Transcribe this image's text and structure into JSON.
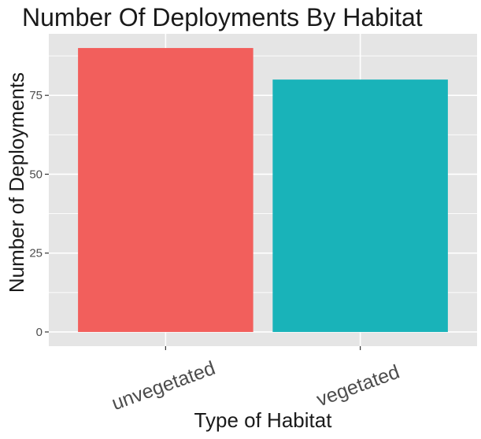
{
  "chart_data": {
    "type": "bar",
    "title": "Number Of Deployments By Habitat",
    "xlabel": "Type of Habitat",
    "ylabel": "Number of Deployments",
    "categories": [
      "unvegetated",
      "vegetated"
    ],
    "values": [
      90,
      80
    ],
    "colors": [
      "#F25F5C",
      "#19B3B9"
    ],
    "ylim": [
      -4.5,
      94.5
    ],
    "yticks": [
      0,
      25,
      50,
      75
    ],
    "ytick_labels": [
      "0",
      "25",
      "50",
      "75"
    ],
    "grid": true,
    "legend": "none",
    "panel_color": "#E5E5E5",
    "grid_color": "#FFFFFF"
  }
}
